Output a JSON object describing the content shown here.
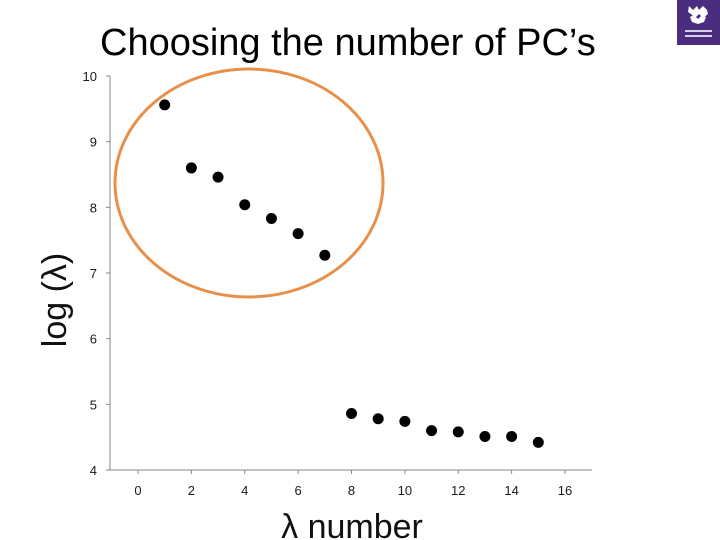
{
  "slide": {
    "title": "Choosing the number of PC’s",
    "logo_icon": "university-crest-icon"
  },
  "colors": {
    "points": "#000000",
    "axis": "#888888",
    "highlight_ellipse": "#e8904a",
    "logo_bg": "#4b2d7f"
  },
  "chart_data": {
    "type": "scatter",
    "title": "",
    "xlabel": "λ number",
    "ylabel": "log (λ)",
    "xlim": [
      -1,
      17
    ],
    "ylim": [
      4,
      10
    ],
    "x_ticks": [
      "0",
      "2",
      "4",
      "6",
      "8",
      "10",
      "12",
      "14",
      "16"
    ],
    "y_ticks": [
      "4",
      "5",
      "6",
      "7",
      "8",
      "9",
      "10"
    ],
    "grid": false,
    "series": [
      {
        "x": [
          1,
          2,
          3,
          4,
          5,
          6,
          7,
          8,
          9,
          10,
          11,
          12,
          13,
          14,
          15
        ],
        "y": [
          9.56,
          8.6,
          8.46,
          8.04,
          7.83,
          7.6,
          7.27,
          4.86,
          4.78,
          4.74,
          4.6,
          4.58,
          4.51,
          4.51,
          4.42
        ]
      }
    ],
    "annotations": [
      {
        "type": "ellipse",
        "description": "highlights first seven eigenvalues"
      }
    ]
  }
}
